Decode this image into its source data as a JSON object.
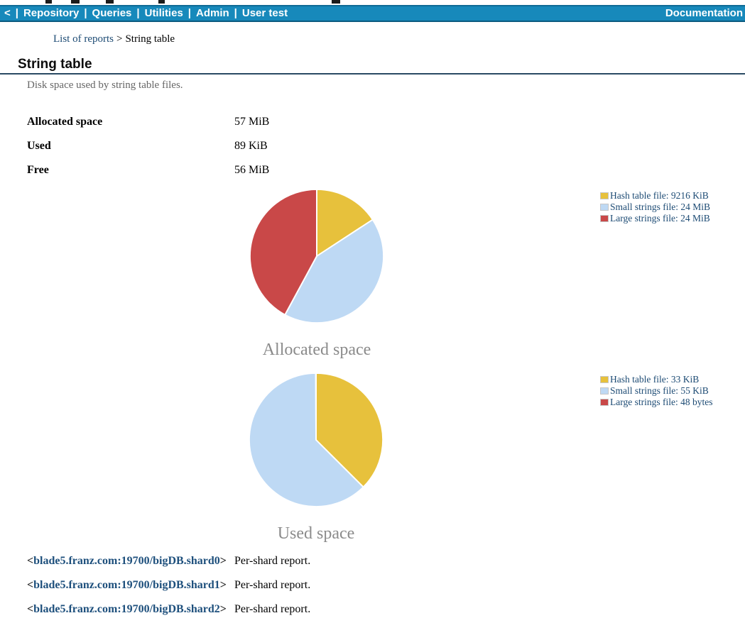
{
  "navbar": {
    "back_chevron": "<",
    "separator": "|",
    "items": [
      "Repository",
      "Queries",
      "Utilities",
      "Admin",
      "User test"
    ],
    "right_label": "Documentation",
    "bg_color": "#1789bb"
  },
  "breadcrumb": {
    "parent_link": "List of reports",
    "separator": ">",
    "current": "String table"
  },
  "header": {
    "title": "String table",
    "description": "Disk space used by string table files."
  },
  "stats": [
    {
      "label": "Allocated space",
      "value": "57 MiB"
    },
    {
      "label": "Used",
      "value": "89 KiB"
    },
    {
      "label": "Free",
      "value": "56 MiB"
    }
  ],
  "chart_data": [
    {
      "type": "pie",
      "title": "Allocated space",
      "labels": [
        "Hash table file",
        "Small strings file",
        "Large strings file"
      ],
      "values": [
        9,
        24,
        24
      ],
      "unit": "MiB",
      "display_values": [
        "9216 KiB",
        "24 MiB",
        "24 MiB"
      ],
      "legend_entries": [
        "Hash table file: 9216 KiB",
        "Small strings file: 24 MiB",
        "Large strings file: 24 MiB"
      ],
      "colors": [
        "#e7c13c",
        "#bed9f4",
        "#c94848"
      ],
      "legend_position": "right",
      "start_angle_deg": 0,
      "direction": "clockwise"
    },
    {
      "type": "pie",
      "title": "Used space",
      "labels": [
        "Hash table file",
        "Small strings file",
        "Large strings file"
      ],
      "values": [
        33,
        55,
        0.047
      ],
      "unit": "KiB",
      "display_values": [
        "33 KiB",
        "55 KiB",
        "48 bytes"
      ],
      "legend_entries": [
        "Hash table file: 33 KiB",
        "Small strings file: 55 KiB",
        "Large strings file: 48 bytes"
      ],
      "colors": [
        "#e7c13c",
        "#bed9f4",
        "#c94848"
      ],
      "legend_position": "right",
      "start_angle_deg": 0,
      "direction": "clockwise"
    }
  ],
  "shards": [
    {
      "bracket_open": "<",
      "host": "blade5.franz.com:19700/bigDB.shard0",
      "bracket_close": ">",
      "note": "Per-shard report."
    },
    {
      "bracket_open": "<",
      "host": "blade5.franz.com:19700/bigDB.shard1",
      "bracket_close": ">",
      "note": "Per-shard report."
    },
    {
      "bracket_open": "<",
      "host": "blade5.franz.com:19700/bigDB.shard2",
      "bracket_close": ">",
      "note": "Per-shard report."
    }
  ]
}
